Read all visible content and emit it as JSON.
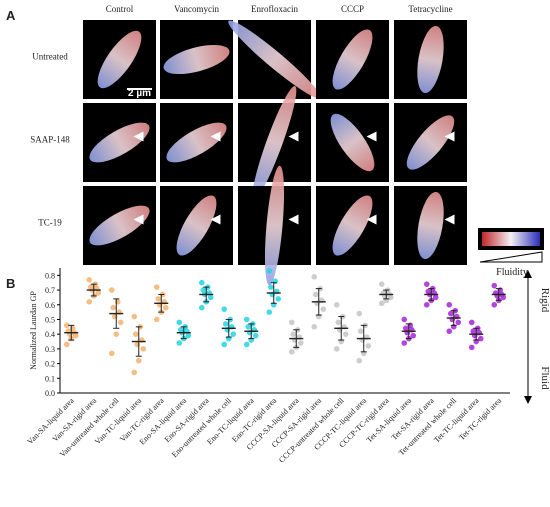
{
  "panel_a": {
    "label": "A",
    "columns": [
      "Control",
      "Vancomycin",
      "Enrofloxacin",
      "CCCP",
      "Tetracycline"
    ],
    "rows": [
      "Untreated",
      "SAAP-148",
      "TC-19"
    ],
    "scale_bar": "2 µm",
    "colorbar_label": "Fluidity"
  },
  "chart_data": {
    "type": "strip",
    "panel_label": "B",
    "ylabel": "Normalized Laurdan GP",
    "annotations": [
      "Rigid",
      "Fluid"
    ],
    "categories": [
      "Van-SA-liquid area",
      "Van-SA-rigid area",
      "Van-untreated whole cell",
      "Van-TC-liquid area",
      "Van-TC-rigid area",
      "Eno-SA-liquid area",
      "Eno-SA-rigid area",
      "Eno-untreated whole cell",
      "Eno-TC-liquid area",
      "Eno-TC-rigid area",
      "CCCP-SA-liquid area",
      "CCCP-SA-rigid area",
      "CCCP-untreated whole cell",
      "CCCP-TC-liquid area",
      "CCCP-TC-rigid area",
      "Tet-SA-liquid area",
      "Tet-SA-rigid area",
      "Tet-untreated whole cell",
      "Tet-TC-liquid area",
      "Tet-TC-rigid area"
    ],
    "colors": [
      "#f5b36e",
      "#f5b36e",
      "#f5b36e",
      "#f5b36e",
      "#f5b36e",
      "#22d4e2",
      "#22d4e2",
      "#22d4e2",
      "#22d4e2",
      "#22d4e2",
      "#c4c4c4",
      "#c4c4c4",
      "#c4c4c4",
      "#c4c4c4",
      "#c4c4c4",
      "#a526d6",
      "#a526d6",
      "#a526d6",
      "#a526d6",
      "#a526d6"
    ],
    "points": [
      [
        0.33,
        0.37,
        0.39,
        0.4,
        0.41,
        0.42,
        0.44,
        0.46
      ],
      [
        0.62,
        0.66,
        0.68,
        0.7,
        0.71,
        0.72,
        0.74,
        0.77
      ],
      [
        0.27,
        0.4,
        0.48,
        0.52,
        0.55,
        0.58,
        0.62,
        0.7
      ],
      [
        0.14,
        0.22,
        0.3,
        0.33,
        0.36,
        0.4,
        0.45,
        0.52
      ],
      [
        0.5,
        0.55,
        0.58,
        0.6,
        0.62,
        0.64,
        0.67,
        0.72
      ],
      [
        0.34,
        0.37,
        0.39,
        0.41,
        0.42,
        0.43,
        0.45,
        0.48
      ],
      [
        0.58,
        0.62,
        0.65,
        0.67,
        0.68,
        0.7,
        0.72,
        0.75
      ],
      [
        0.33,
        0.37,
        0.4,
        0.43,
        0.45,
        0.47,
        0.5,
        0.57
      ],
      [
        0.33,
        0.36,
        0.39,
        0.41,
        0.43,
        0.45,
        0.47,
        0.5
      ],
      [
        0.55,
        0.6,
        0.64,
        0.67,
        0.69,
        0.72,
        0.76,
        0.83
      ],
      [
        0.28,
        0.31,
        0.34,
        0.36,
        0.38,
        0.4,
        0.43,
        0.48
      ],
      [
        0.45,
        0.52,
        0.57,
        0.61,
        0.63,
        0.67,
        0.71,
        0.79
      ],
      [
        0.3,
        0.35,
        0.4,
        0.43,
        0.45,
        0.48,
        0.52,
        0.6
      ],
      [
        0.22,
        0.27,
        0.32,
        0.36,
        0.38,
        0.42,
        0.46,
        0.54
      ],
      [
        0.61,
        0.63,
        0.65,
        0.66,
        0.67,
        0.68,
        0.7,
        0.74
      ],
      [
        0.34,
        0.37,
        0.39,
        0.41,
        0.43,
        0.44,
        0.46,
        0.5
      ],
      [
        0.6,
        0.63,
        0.65,
        0.67,
        0.68,
        0.69,
        0.71,
        0.74
      ],
      [
        0.42,
        0.45,
        0.48,
        0.5,
        0.52,
        0.54,
        0.56,
        0.6
      ],
      [
        0.31,
        0.35,
        0.37,
        0.39,
        0.41,
        0.42,
        0.44,
        0.48
      ],
      [
        0.6,
        0.63,
        0.65,
        0.66,
        0.67,
        0.68,
        0.7,
        0.73
      ]
    ],
    "means": [
      0.41,
      0.7,
      0.54,
      0.35,
      0.61,
      0.41,
      0.67,
      0.44,
      0.42,
      0.68,
      0.37,
      0.62,
      0.44,
      0.37,
      0.67,
      0.42,
      0.67,
      0.51,
      0.4,
      0.67
    ],
    "errors": [
      0.05,
      0.04,
      0.1,
      0.1,
      0.06,
      0.04,
      0.05,
      0.06,
      0.05,
      0.07,
      0.06,
      0.09,
      0.08,
      0.09,
      0.03,
      0.05,
      0.04,
      0.05,
      0.04,
      0.04
    ],
    "ylim": [
      0,
      0.85
    ],
    "yticks": [
      {
        "value": 0,
        "label": "0.0"
      },
      0.1,
      0.2,
      0.3,
      0.4,
      0.5,
      0.6,
      0.7,
      0.8
    ]
  }
}
